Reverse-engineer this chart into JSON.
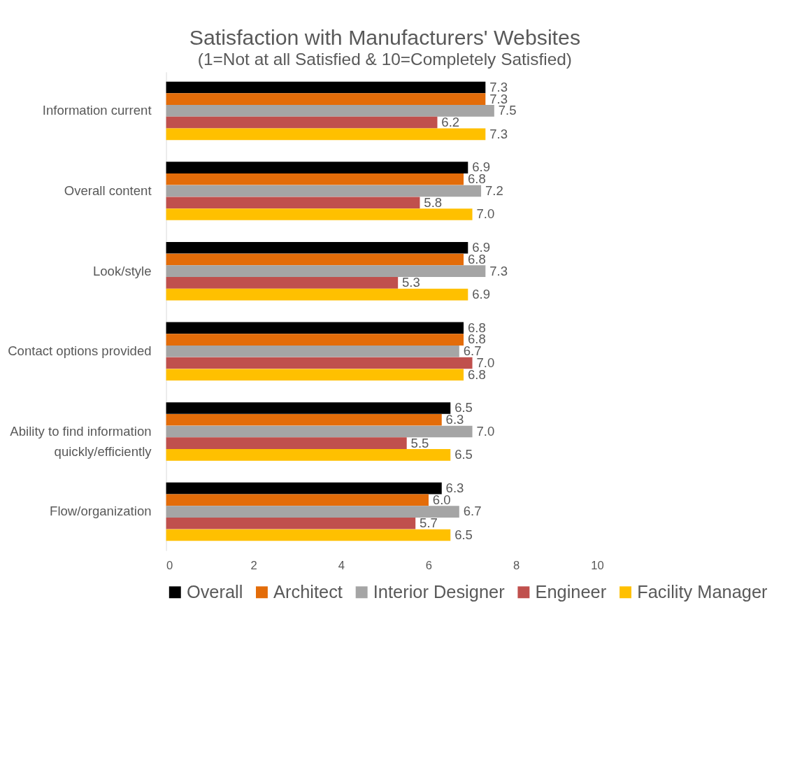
{
  "chart_data": {
    "type": "bar",
    "orientation": "horizontal",
    "title": "Satisfaction with Manufacturers' Websites",
    "subtitle": "(1=Not at all Satisfied & 10=Completely Satisfied)",
    "categories": [
      "Information current",
      "Overall content",
      "Look/style",
      "Contact options provided",
      "Ability to find information quickly/efficiently",
      "Flow/organization"
    ],
    "series": [
      {
        "name": "Overall",
        "color": "#000000",
        "values": [
          7.3,
          6.9,
          6.9,
          6.8,
          6.5,
          6.3
        ],
        "value_labels": [
          "7.3",
          "6.9",
          "6.9",
          "6.8",
          "6.5",
          "6.3"
        ]
      },
      {
        "name": "Architect",
        "color": "#e36c09",
        "values": [
          7.3,
          6.8,
          6.8,
          6.8,
          6.3,
          6.0
        ],
        "value_labels": [
          "7.3",
          "6.8",
          "6.8",
          "6.8",
          "6.3",
          "6.0"
        ]
      },
      {
        "name": "Interior Designer",
        "color": "#a5a5a5",
        "values": [
          7.5,
          7.2,
          7.3,
          6.7,
          7.0,
          6.7
        ],
        "value_labels": [
          "7.5",
          "7.2",
          "7.3",
          "6.7",
          "7.0",
          "6.7"
        ]
      },
      {
        "name": "Engineer",
        "color": "#c0504d",
        "values": [
          6.2,
          5.8,
          5.3,
          7.0,
          5.5,
          5.7
        ],
        "value_labels": [
          "6.2",
          "5.8",
          "5.3",
          "7.0",
          "5.5",
          "5.7"
        ]
      },
      {
        "name": "Facility Manager",
        "color": "#ffc000",
        "values": [
          7.3,
          7.0,
          6.9,
          6.8,
          6.5,
          6.5
        ],
        "value_labels": [
          "7.3",
          "7.0",
          "6.9",
          "6.8",
          "6.5",
          "6.5"
        ]
      }
    ],
    "xlim": [
      0,
      10
    ],
    "xticks": [
      0,
      2,
      4,
      6,
      8,
      10
    ],
    "grid": false,
    "legend": "bottom"
  }
}
